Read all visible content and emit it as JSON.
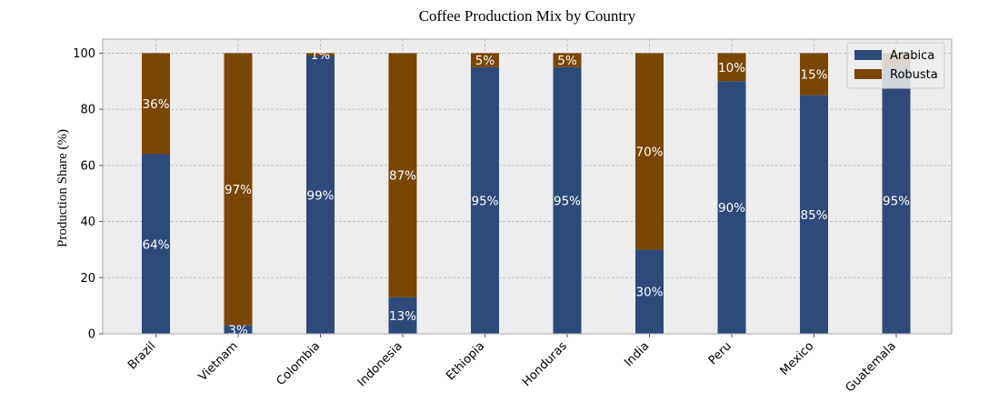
{
  "chart_data": {
    "type": "bar",
    "stacked": true,
    "title": "Coffee Production Mix by Country",
    "xlabel": "",
    "ylabel": "Production Share (%)",
    "ylim": [
      0,
      105
    ],
    "yticks": [
      0,
      20,
      40,
      60,
      80,
      100
    ],
    "grid": true,
    "legend_position": "top-right",
    "categories": [
      "Brazil",
      "Vietnam",
      "Colombia",
      "Indonesia",
      "Ethiopia",
      "Honduras",
      "India",
      "Peru",
      "Mexico",
      "Guatemala"
    ],
    "series": [
      {
        "name": "Arabica",
        "color": "#2e4a7b",
        "values": [
          64,
          3,
          99,
          13,
          95,
          95,
          30,
          90,
          85,
          95
        ],
        "labels": [
          "64%",
          "3%",
          "99%",
          "13%",
          "95%",
          "95%",
          "30%",
          "90%",
          "85%",
          "95%"
        ]
      },
      {
        "name": "Robusta",
        "color": "#7a4603",
        "values": [
          36,
          97,
          1,
          87,
          5,
          5,
          70,
          10,
          15,
          5
        ],
        "labels": [
          "36%",
          "97%",
          "1%",
          "87%",
          "5%",
          "5%",
          "70%",
          "10%",
          "15%",
          ""
        ]
      }
    ]
  }
}
